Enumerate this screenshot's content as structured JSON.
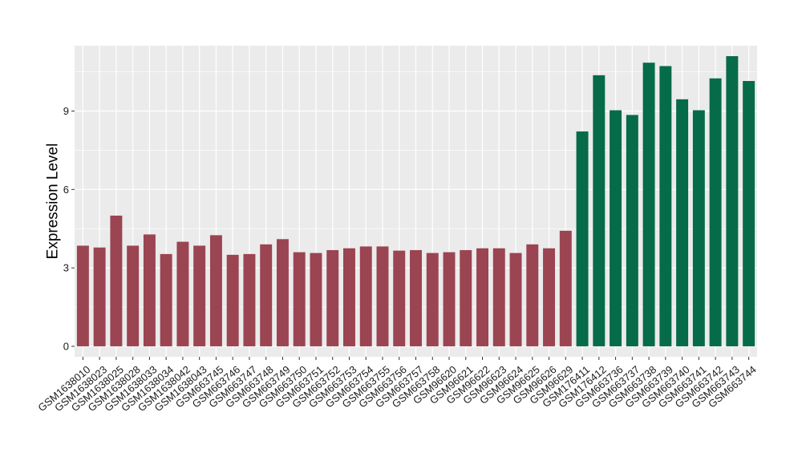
{
  "chart_data": {
    "type": "bar",
    "title": "",
    "xlabel": "",
    "ylabel": "Expression Level",
    "ylim": [
      -0.4,
      11.5
    ],
    "yticks": [
      0,
      3,
      6,
      9
    ],
    "grid": true,
    "legend": "none",
    "colors": {
      "group1": "#9b4452",
      "group2": "#066b48",
      "panel": "#ebebeb",
      "grid": "#ffffff"
    },
    "categories": [
      "GSM1638010",
      "GSM1638023",
      "GSM1638025",
      "GSM1638028",
      "GSM1638033",
      "GSM1638034",
      "GSM1638042",
      "GSM1638043",
      "GSM663745",
      "GSM663746",
      "GSM663747",
      "GSM663748",
      "GSM663749",
      "GSM663750",
      "GSM663751",
      "GSM663752",
      "GSM663753",
      "GSM663754",
      "GSM663755",
      "GSM663756",
      "GSM663757",
      "GSM663758",
      "GSM96620",
      "GSM96621",
      "GSM96622",
      "GSM96623",
      "GSM96624",
      "GSM96625",
      "GSM96626",
      "GSM96629",
      "GSM176411",
      "GSM176412",
      "GSM663736",
      "GSM663737",
      "GSM663738",
      "GSM663739",
      "GSM663740",
      "GSM663741",
      "GSM663742",
      "GSM663743",
      "GSM663744"
    ],
    "values": [
      3.85,
      3.78,
      5.0,
      3.85,
      4.28,
      3.53,
      4.0,
      3.85,
      4.25,
      3.5,
      3.53,
      3.9,
      4.1,
      3.6,
      3.57,
      3.68,
      3.75,
      3.82,
      3.82,
      3.66,
      3.68,
      3.57,
      3.6,
      3.68,
      3.75,
      3.75,
      3.57,
      3.9,
      3.75,
      4.42,
      8.22,
      10.37,
      9.03,
      8.85,
      10.85,
      10.72,
      9.45,
      9.03,
      10.25,
      11.1,
      10.15
    ],
    "groups": [
      1,
      1,
      1,
      1,
      1,
      1,
      1,
      1,
      1,
      1,
      1,
      1,
      1,
      1,
      1,
      1,
      1,
      1,
      1,
      1,
      1,
      1,
      1,
      1,
      1,
      1,
      1,
      1,
      1,
      1,
      2,
      2,
      2,
      2,
      2,
      2,
      2,
      2,
      2,
      2,
      2
    ]
  }
}
